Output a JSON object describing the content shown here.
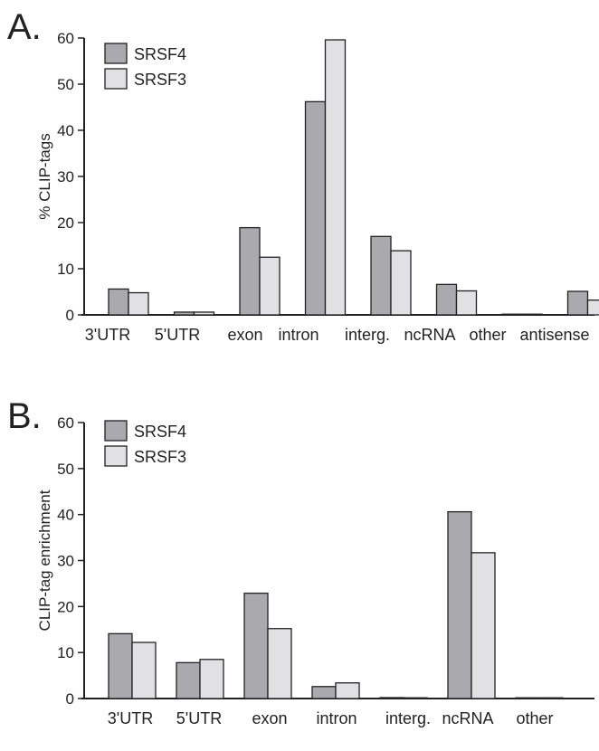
{
  "colors": {
    "srsf4": "#a9a9ae",
    "srsf3": "#e1e1e4",
    "axis": "#222222"
  },
  "chart_data": [
    {
      "type": "bar",
      "panel_label": "A.",
      "ylabel": "% CLIP-tags",
      "xlabel": "",
      "ylim": [
        0,
        60
      ],
      "yticks": [
        0,
        10,
        20,
        30,
        40,
        50,
        60
      ],
      "legend": "top-left",
      "categories": [
        "3'UTR",
        "5'UTR",
        "exon",
        "intron",
        "interg.",
        "ncRNA",
        "other",
        "antisense"
      ],
      "series": [
        {
          "name": "SRSF4",
          "color": "#a9a9ae",
          "values": [
            5.6,
            0.6,
            18.9,
            46.2,
            17.0,
            6.6,
            0.1,
            5.1
          ]
        },
        {
          "name": "SRSF3",
          "color": "#e1e1e4",
          "values": [
            4.8,
            0.6,
            12.5,
            59.6,
            13.9,
            5.2,
            0.1,
            3.2
          ]
        }
      ]
    },
    {
      "type": "bar",
      "panel_label": "B.",
      "ylabel": "CLIP-tag enrichment",
      "xlabel": "",
      "ylim": [
        0,
        60
      ],
      "yticks": [
        0,
        10,
        20,
        30,
        40,
        50,
        60
      ],
      "legend": "top-left",
      "categories": [
        "3'UTR",
        "5'UTR",
        "exon",
        "intron",
        "interg.",
        "ncRNA",
        "other"
      ],
      "series": [
        {
          "name": "SRSF4",
          "color": "#a9a9ae",
          "values": [
            14.1,
            7.8,
            22.9,
            2.6,
            0.2,
            40.6,
            0
          ]
        },
        {
          "name": "SRSF3",
          "color": "#e1e1e4",
          "values": [
            12.2,
            8.5,
            15.2,
            3.4,
            0.1,
            31.7,
            0
          ]
        }
      ]
    }
  ]
}
